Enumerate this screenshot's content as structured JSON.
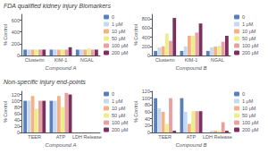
{
  "chart_data": [
    {
      "type": "bar",
      "title": "FDA qualified kidney injury Biomarkers",
      "categories": [
        "Clusterin",
        "KIM-1",
        "NGAL"
      ],
      "series": [
        {
          "name": "0",
          "color": "#5b7fbc",
          "values": [
            100,
            100,
            100
          ]
        },
        {
          "name": "1 μM",
          "color": "#c5d9f1",
          "values": [
            100,
            100,
            100
          ]
        },
        {
          "name": "10 μM",
          "color": "#f4b183",
          "values": [
            100,
            100,
            100
          ]
        },
        {
          "name": "50 μM",
          "color": "#eeee88",
          "values": [
            100,
            100,
            120
          ]
        },
        {
          "name": "100 μM",
          "color": "#e8a0a0",
          "values": [
            100,
            100,
            100
          ]
        },
        {
          "name": "200 μM",
          "color": "#7b3060",
          "values": [
            100,
            140,
            100
          ]
        }
      ],
      "ylim": [
        0,
        700
      ],
      "yticks": [
        0,
        200,
        400,
        600
      ],
      "xlabel": "Compound A",
      "ylabel": "% Control",
      "grid": false,
      "legend": "right"
    },
    {
      "type": "bar",
      "categories": [
        "Clusterin",
        "KIM-1",
        "NGAL"
      ],
      "series": [
        {
          "name": "0",
          "color": "#5b7fbc",
          "values": [
            100,
            100,
            100
          ]
        },
        {
          "name": "1 μM",
          "color": "#c5d9f1",
          "values": [
            175,
            200,
            175
          ]
        },
        {
          "name": "10 μM",
          "color": "#f4b183",
          "values": [
            200,
            430,
            195
          ]
        },
        {
          "name": "50 μM",
          "color": "#eeee88",
          "values": [
            480,
            430,
            210
          ]
        },
        {
          "name": "100 μM",
          "color": "#e8a0a0",
          "values": [
            320,
            500,
            300
          ]
        },
        {
          "name": "200 μM",
          "color": "#7b3060",
          "values": [
            820,
            700,
            430
          ]
        }
      ],
      "ylim": [
        0,
        900
      ],
      "yticks": [
        0,
        200,
        400,
        600,
        800
      ],
      "xlabel": "Compound B",
      "ylabel": "% Control",
      "grid": false,
      "legend": "right"
    },
    {
      "type": "bar",
      "title": "Non-specific injury end-points",
      "categories": [
        "TEER",
        "ATP",
        "LDH Release"
      ],
      "series": [
        {
          "name": "0",
          "color": "#5b7fbc",
          "values": [
            100,
            100,
            0
          ]
        },
        {
          "name": "1 μM",
          "color": "#c5d9f1",
          "values": [
            100,
            100,
            0
          ]
        },
        {
          "name": "10 μM",
          "color": "#f4b183",
          "values": [
            115,
            115,
            0
          ]
        },
        {
          "name": "50 μM",
          "color": "#eeee88",
          "values": [
            75,
            80,
            0
          ]
        },
        {
          "name": "100 μM",
          "color": "#e8a0a0",
          "values": [
            100,
            125,
            0
          ]
        },
        {
          "name": "200 μM",
          "color": "#7b3060",
          "values": [
            100,
            120,
            0
          ]
        }
      ],
      "ylim": [
        0,
        130
      ],
      "yticks": [
        0,
        20,
        40,
        60,
        80,
        100,
        120
      ],
      "xlabel": "Compound A",
      "ylabel": "% Control",
      "grid": false,
      "legend": "right"
    },
    {
      "type": "bar",
      "categories": [
        "TEER",
        "ATP",
        "LDH Release"
      ],
      "series": [
        {
          "name": "0",
          "color": "#5b7fbc",
          "values": [
            100,
            100,
            0
          ]
        },
        {
          "name": "1 μM",
          "color": "#c5d9f1",
          "values": [
            70,
            60,
            5
          ]
        },
        {
          "name": "10 μM",
          "color": "#f4b183",
          "values": [
            60,
            25,
            5
          ]
        },
        {
          "name": "50 μM",
          "color": "#eeee88",
          "values": [
            25,
            62,
            5
          ]
        },
        {
          "name": "100 μM",
          "color": "#e8a0a0",
          "values": [
            100,
            62,
            30
          ]
        },
        {
          "name": "200 μM",
          "color": "#7b3060",
          "values": [
            5,
            62,
            5
          ]
        }
      ],
      "ylim": [
        0,
        120
      ],
      "yticks": [
        0,
        20,
        40,
        60,
        80,
        100,
        120
      ],
      "xlabel": "Compound B",
      "ylabel": "% Control",
      "grid": false,
      "legend": "right"
    }
  ]
}
